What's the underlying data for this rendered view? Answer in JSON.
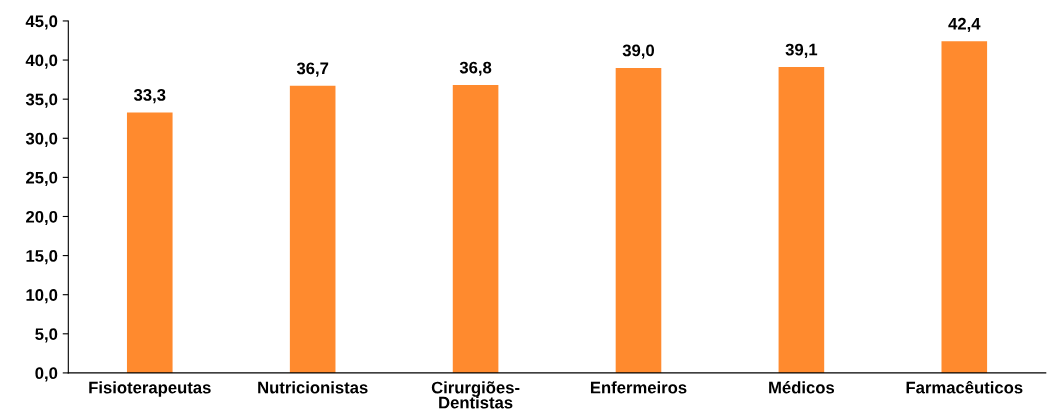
{
  "chart_data": {
    "type": "bar",
    "categories": [
      "Fisioterapeutas",
      "Nutricionistas",
      "Cirurgiões-Dentistas",
      "Enfermeiros",
      "Médicos",
      "Farmacêuticos"
    ],
    "values": [
      33.3,
      36.7,
      36.8,
      39.0,
      39.1,
      42.4
    ],
    "value_labels": [
      "33,3",
      "36,7",
      "36,8",
      "39,0",
      "39,1",
      "42,4"
    ],
    "color": "#ff8a2e",
    "ylim": [
      0,
      45
    ],
    "yticks": [
      {
        "value": 0,
        "label": "0,0"
      },
      {
        "value": 5,
        "label": "5,0"
      },
      {
        "value": 10,
        "label": "10,0"
      },
      {
        "value": 15,
        "label": "15,0"
      },
      {
        "value": 20,
        "label": "20,0"
      },
      {
        "value": 25,
        "label": "25,0"
      },
      {
        "value": 30,
        "label": "30,0"
      },
      {
        "value": 35,
        "label": "35,0"
      },
      {
        "value": 40,
        "label": "40,0"
      },
      {
        "value": 45,
        "label": "45,0"
      }
    ],
    "grid": false,
    "legend": false
  }
}
